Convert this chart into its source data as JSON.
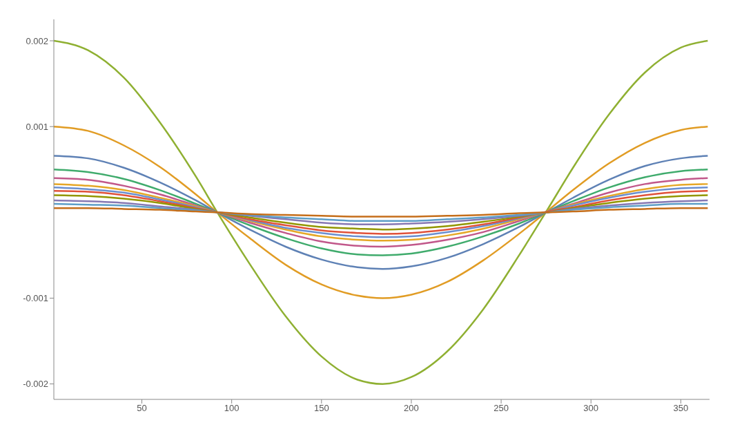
{
  "chart_data": {
    "type": "line",
    "marker": "none",
    "line_style": "solid",
    "grid": false,
    "legend": false,
    "x": [
      1,
      20,
      40,
      60,
      80,
      92,
      110,
      130,
      150,
      170,
      184,
      200,
      220,
      240,
      260,
      276,
      290,
      310,
      330,
      350,
      365
    ],
    "xlim": [
      1,
      366
    ],
    "xticks": [
      50,
      100,
      150,
      200,
      250,
      300,
      350
    ],
    "ylim": [
      -0.00218,
      0.00225
    ],
    "yticks": [
      -0.002,
      -0.001,
      0.001,
      0.002
    ],
    "series": [
      {
        "color": "#8fb032",
        "values": [
          0.002,
          0.00189,
          0.00157,
          0.00105,
          0.00042,
          0,
          -0.0006,
          -0.00121,
          -0.00168,
          -0.00195,
          -0.002,
          -0.00192,
          -0.00162,
          -0.00113,
          -0.0005,
          4e-05,
          0.00052,
          0.00114,
          0.00163,
          0.00192,
          0.002
        ]
      },
      {
        "color": "#e19c24",
        "values": [
          0.001,
          0.00095,
          0.00078,
          0.00053,
          0.00021,
          0,
          -0.0003,
          -0.00061,
          -0.00084,
          -0.00097,
          -0.001,
          -0.00096,
          -0.00081,
          -0.00056,
          -0.00025,
          2e-05,
          0.00026,
          0.00057,
          0.00081,
          0.00096,
          0.001
        ]
      },
      {
        "color": "#5e81b5",
        "values": [
          0.00066,
          0.00063,
          0.00052,
          0.00035,
          0.00014,
          0,
          -0.0002,
          -0.0004,
          -0.00055,
          -0.00064,
          -0.00066,
          -0.00063,
          -0.00053,
          -0.00037,
          -0.00017,
          1e-05,
          0.00017,
          0.00038,
          0.00054,
          0.00063,
          0.00066
        ]
      },
      {
        "color": "#3fab6c",
        "values": [
          0.0005,
          0.00047,
          0.00039,
          0.00026,
          0.0001,
          0,
          -0.00015,
          -0.0003,
          -0.00042,
          -0.00049,
          -0.0005,
          -0.00048,
          -0.0004,
          -0.00028,
          -0.00013,
          1e-05,
          0.00013,
          0.00029,
          0.00041,
          0.00048,
          0.0005
        ]
      },
      {
        "color": "#c1578a",
        "values": [
          0.0004,
          0.00038,
          0.00031,
          0.00021,
          8e-05,
          0,
          -0.00012,
          -0.00024,
          -0.00034,
          -0.00039,
          -0.0004,
          -0.00038,
          -0.00032,
          -0.00023,
          -0.0001,
          1e-05,
          0.0001,
          0.00023,
          0.00033,
          0.00038,
          0.0004
        ]
      },
      {
        "color": "#e5a727",
        "values": [
          0.00033,
          0.00031,
          0.00026,
          0.00017,
          7e-05,
          0,
          -0.0001,
          -0.0002,
          -0.00028,
          -0.00032,
          -0.00033,
          -0.00032,
          -0.00027,
          -0.00019,
          -8e-05,
          1e-05,
          9e-05,
          0.00019,
          0.00027,
          0.00032,
          0.00033
        ]
      },
      {
        "color": "#6a8fd0",
        "values": [
          0.00029,
          0.00027,
          0.00023,
          0.00015,
          6e-05,
          0,
          -9e-05,
          -0.00018,
          -0.00024,
          -0.00028,
          -0.00029,
          -0.00028,
          -0.00023,
          -0.00016,
          -7e-05,
          1e-05,
          8e-05,
          0.00017,
          0.00024,
          0.00028,
          0.00029
        ]
      },
      {
        "color": "#e0523a",
        "values": [
          0.00025,
          0.00024,
          0.0002,
          0.00013,
          5e-05,
          0,
          -8e-05,
          -0.00015,
          -0.00021,
          -0.00024,
          -0.00025,
          -0.00024,
          -0.0002,
          -0.00014,
          -6e-05,
          1e-05,
          6e-05,
          0.00014,
          0.0002,
          0.00024,
          0.00025
        ]
      },
      {
        "color": "#929600",
        "values": [
          0.0002,
          0.00019,
          0.00016,
          0.00011,
          4e-05,
          0,
          -6e-05,
          -0.00012,
          -0.00017,
          -0.00019,
          -0.0002,
          -0.00019,
          -0.00016,
          -0.00011,
          -5e-05,
          0,
          5e-05,
          0.00011,
          0.00016,
          0.00019,
          0.0002
        ]
      },
      {
        "color": "#8778b3",
        "values": [
          0.00014,
          0.00013,
          0.00011,
          7e-05,
          3e-05,
          0,
          -4e-05,
          -8e-05,
          -0.00012,
          -0.00014,
          -0.00014,
          -0.00013,
          -0.00011,
          -8e-05,
          -4e-05,
          0,
          4e-05,
          8e-05,
          0.00011,
          0.00013,
          0.00014
        ]
      },
      {
        "color": "#5d9ec7",
        "values": [
          0.0001,
          9e-05,
          8e-05,
          5e-05,
          2e-05,
          0,
          -3e-05,
          -6e-05,
          -8e-05,
          -0.0001,
          -0.0001,
          -0.0001,
          -8e-05,
          -6e-05,
          -3e-05,
          0,
          3e-05,
          6e-05,
          8e-05,
          0.0001,
          0.0001
        ]
      },
      {
        "color": "#c56e1a",
        "values": [
          5e-05,
          5e-05,
          4e-05,
          3e-05,
          1e-05,
          0,
          -2e-05,
          -3e-05,
          -4e-05,
          -5e-05,
          -5e-05,
          -5e-05,
          -4e-05,
          -3e-05,
          -1e-05,
          0,
          1e-05,
          3e-05,
          4e-05,
          5e-05,
          5e-05
        ]
      }
    ]
  }
}
